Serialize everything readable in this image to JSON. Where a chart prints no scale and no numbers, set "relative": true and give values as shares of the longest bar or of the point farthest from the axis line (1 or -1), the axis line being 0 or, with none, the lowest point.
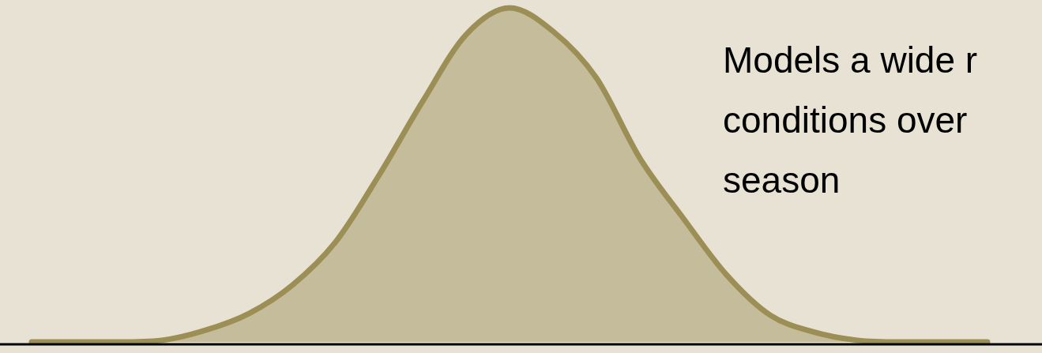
{
  "chart_data": {
    "type": "area",
    "relative": true,
    "categories": [
      null,
      null,
      null,
      null,
      null,
      null,
      null,
      null,
      null,
      null,
      null,
      null,
      null,
      null,
      null,
      null,
      null,
      null,
      null,
      null,
      null,
      null,
      null
    ],
    "values": [
      0,
      0,
      0,
      0.005,
      0.035,
      0.085,
      0.17,
      0.3,
      0.5,
      0.72,
      0.92,
      1,
      0.93,
      0.79,
      0.55,
      0.37,
      0.2,
      0.08,
      0.03,
      0.005,
      0,
      0,
      0
    ],
    "color": "#9c8f55",
    "annotations": [
      "Models a wide r",
      "conditions over",
      "season"
    ]
  }
}
